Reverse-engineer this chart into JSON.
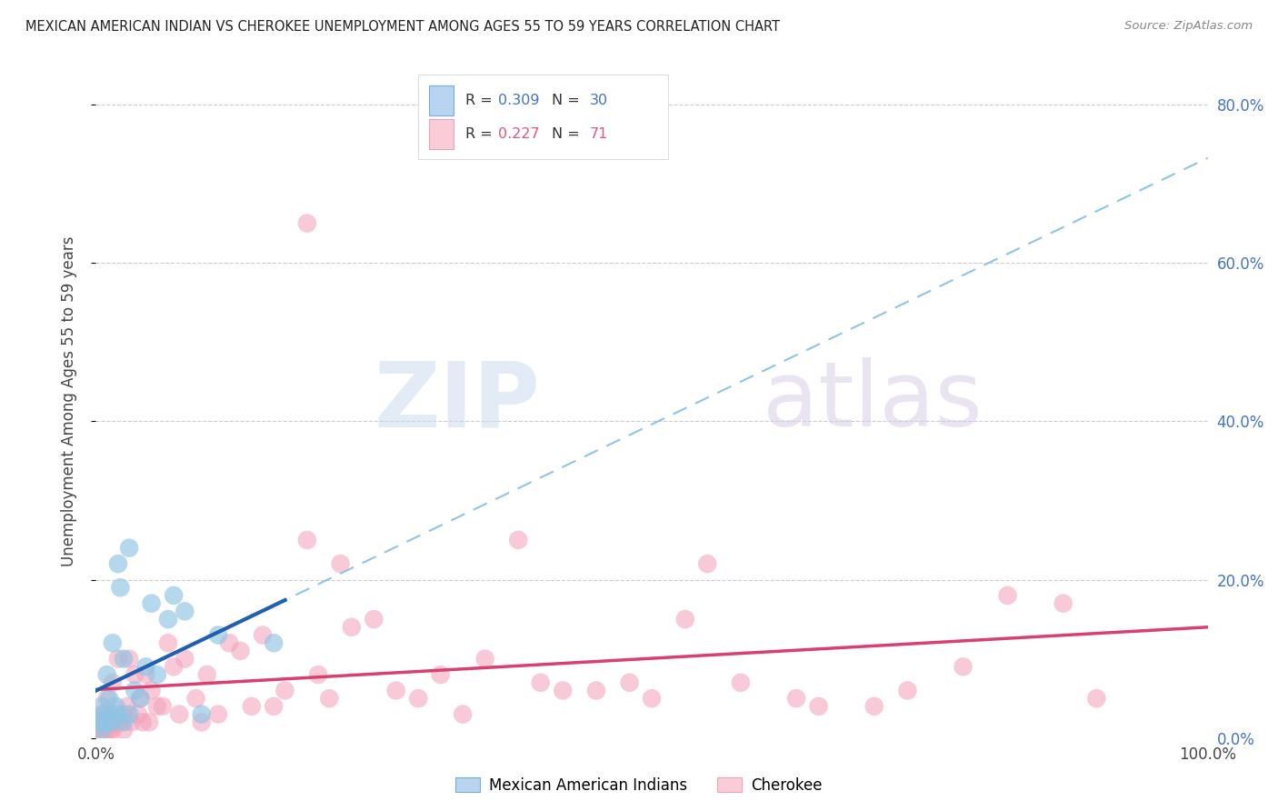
{
  "title": "MEXICAN AMERICAN INDIAN VS CHEROKEE UNEMPLOYMENT AMONG AGES 55 TO 59 YEARS CORRELATION CHART",
  "source": "Source: ZipAtlas.com",
  "ylabel": "Unemployment Among Ages 55 to 59 years",
  "xlim": [
    0.0,
    1.0
  ],
  "ylim": [
    0.0,
    0.85
  ],
  "right_ytick_vals": [
    0.0,
    0.2,
    0.4,
    0.6,
    0.8
  ],
  "right_yticklabels": [
    "0.0%",
    "20.0%",
    "40.0%",
    "60.0%",
    "80.0%"
  ],
  "xtick_vals": [
    0.0,
    1.0
  ],
  "xticklabels": [
    "0.0%",
    "100.0%"
  ],
  "legend_label1": "Mexican American Indians",
  "legend_label2": "Cherokee",
  "blue_scatter_color": "#90c4e4",
  "blue_line_solid": "#2060b0",
  "blue_line_dashed": "#90c4e4",
  "pink_scatter_color": "#f4a0b8",
  "pink_line_solid": "#d84070",
  "blue_legend_face": "#b8d4f0",
  "blue_legend_edge": "#7aacda",
  "pink_legend_face": "#f9ccd8",
  "pink_legend_edge": "#f4a0b8",
  "r_blue_color": "#4472c4",
  "r_pink_color": "#e05878",
  "grid_color": "#cccccc",
  "text_color": "#444444",
  "blue_x": [
    0.003,
    0.005,
    0.005,
    0.007,
    0.008,
    0.01,
    0.01,
    0.012,
    0.013,
    0.015,
    0.015,
    0.018,
    0.02,
    0.02,
    0.022,
    0.025,
    0.025,
    0.03,
    0.03,
    0.035,
    0.04,
    0.045,
    0.05,
    0.055,
    0.065,
    0.07,
    0.08,
    0.095,
    0.11,
    0.16
  ],
  "blue_y": [
    0.02,
    0.04,
    0.01,
    0.03,
    0.02,
    0.08,
    0.02,
    0.05,
    0.03,
    0.12,
    0.02,
    0.04,
    0.22,
    0.03,
    0.19,
    0.1,
    0.02,
    0.24,
    0.03,
    0.06,
    0.05,
    0.09,
    0.17,
    0.08,
    0.15,
    0.18,
    0.16,
    0.03,
    0.13,
    0.12
  ],
  "pink_x": [
    0.003,
    0.005,
    0.005,
    0.007,
    0.008,
    0.01,
    0.01,
    0.012,
    0.013,
    0.015,
    0.015,
    0.018,
    0.02,
    0.022,
    0.025,
    0.025,
    0.028,
    0.03,
    0.032,
    0.035,
    0.038,
    0.04,
    0.042,
    0.045,
    0.048,
    0.05,
    0.055,
    0.06,
    0.065,
    0.07,
    0.075,
    0.08,
    0.09,
    0.095,
    0.1,
    0.11,
    0.12,
    0.13,
    0.14,
    0.15,
    0.16,
    0.17,
    0.19,
    0.2,
    0.21,
    0.22,
    0.23,
    0.25,
    0.27,
    0.29,
    0.31,
    0.33,
    0.35,
    0.38,
    0.4,
    0.42,
    0.45,
    0.48,
    0.5,
    0.53,
    0.55,
    0.58,
    0.63,
    0.65,
    0.7,
    0.73,
    0.78,
    0.82,
    0.87,
    0.9,
    0.19
  ],
  "pink_y": [
    0.01,
    0.03,
    0.01,
    0.02,
    0.01,
    0.05,
    0.01,
    0.03,
    0.01,
    0.07,
    0.01,
    0.02,
    0.1,
    0.02,
    0.03,
    0.01,
    0.04,
    0.1,
    0.02,
    0.08,
    0.03,
    0.05,
    0.02,
    0.08,
    0.02,
    0.06,
    0.04,
    0.04,
    0.12,
    0.09,
    0.03,
    0.1,
    0.05,
    0.02,
    0.08,
    0.03,
    0.12,
    0.11,
    0.04,
    0.13,
    0.04,
    0.06,
    0.25,
    0.08,
    0.05,
    0.22,
    0.14,
    0.15,
    0.06,
    0.05,
    0.08,
    0.03,
    0.1,
    0.25,
    0.07,
    0.06,
    0.06,
    0.07,
    0.05,
    0.15,
    0.22,
    0.07,
    0.05,
    0.04,
    0.04,
    0.06,
    0.09,
    0.18,
    0.17,
    0.05,
    0.65
  ]
}
